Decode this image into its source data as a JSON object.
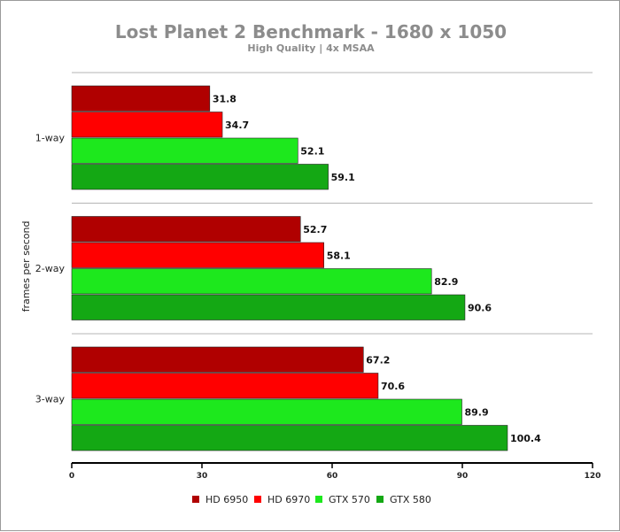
{
  "chart_data": {
    "type": "bar",
    "orientation": "horizontal",
    "title": "Lost Planet 2 Benchmark - 1680 x 1050",
    "subtitle": "High Quality | 4x MSAA",
    "ylabel": "frames per second",
    "categories": [
      "1-way",
      "2-way",
      "3-way"
    ],
    "series": [
      {
        "name": "HD 6950",
        "values": [
          31.8,
          52.7,
          67.2
        ],
        "color": "#b00000"
      },
      {
        "name": "HD 6970",
        "values": [
          34.7,
          58.1,
          70.6
        ],
        "color": "#ff0000"
      },
      {
        "name": "GTX 570",
        "values": [
          52.1,
          82.9,
          89.9
        ],
        "color": "#1de81d"
      },
      {
        "name": "GTX 580",
        "values": [
          59.1,
          90.6,
          100.4
        ],
        "color": "#14a814"
      }
    ],
    "xlim": [
      0,
      120
    ],
    "xticks": [
      0,
      30,
      60,
      90,
      120
    ],
    "legend_position": "bottom"
  }
}
